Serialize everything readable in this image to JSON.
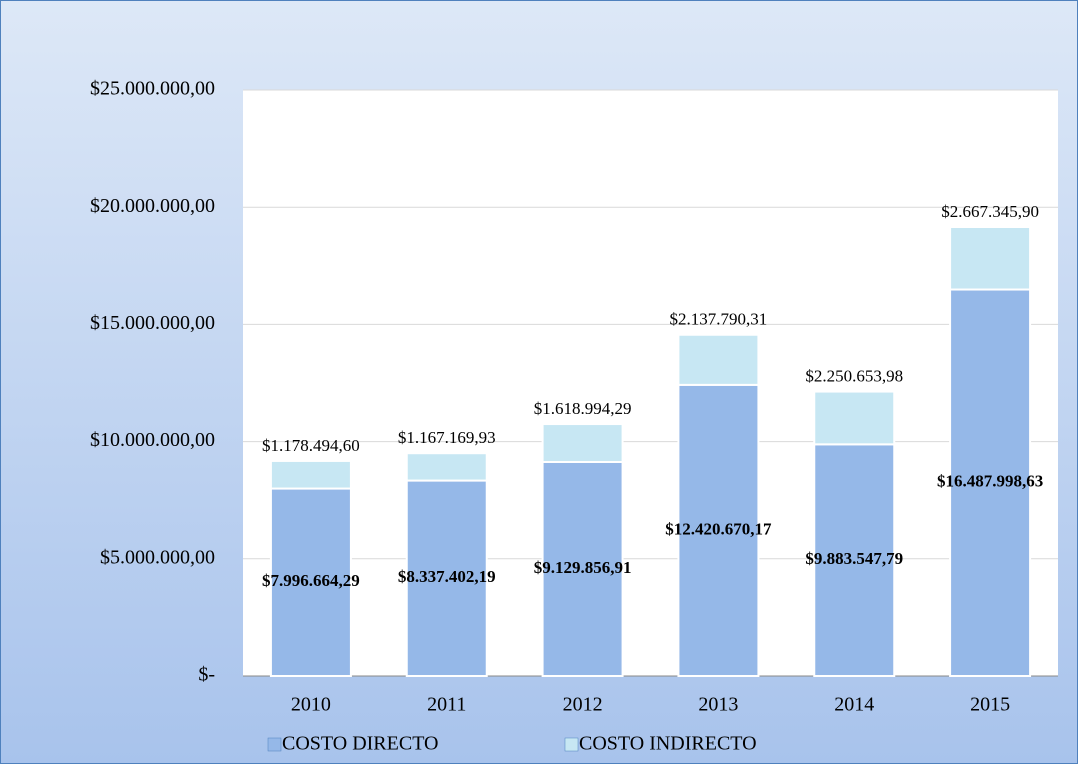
{
  "chart_data": {
    "type": "stacked-bar",
    "categories": [
      "2010",
      "2011",
      "2012",
      "2013",
      "2014",
      "2015"
    ],
    "series": [
      {
        "name": "COSTO DIRECTO",
        "color": "#95b8e8",
        "values": [
          7996664.29,
          8337402.19,
          9129856.91,
          12420670.17,
          9883547.79,
          16487998.63
        ],
        "value_labels": [
          "$7.996.664,29",
          "$8.337.402,19",
          "$9.129.856,91",
          "$12.420.670,17",
          "$9.883.547,79",
          "$16.487.998,63"
        ]
      },
      {
        "name": "COSTO INDIRECTO",
        "color": "#c7e7f3",
        "values": [
          1178494.6,
          1167169.93,
          1618994.29,
          2137790.31,
          2250653.98,
          2667345.9
        ],
        "value_labels": [
          "$1.178.494,60",
          "$1.167.169,93",
          "$1.618.994,29",
          "$2.137.790,31",
          "$2.250.653,98",
          "$2.667.345,90"
        ]
      }
    ],
    "ylim": [
      0,
      25000000
    ],
    "yticks": [
      {
        "value": 0,
        "label": "$-"
      },
      {
        "value": 5000000,
        "label": "$5.000.000,00"
      },
      {
        "value": 10000000,
        "label": "$10.000.000,00"
      },
      {
        "value": 15000000,
        "label": "$15.000.000,00"
      },
      {
        "value": 20000000,
        "label": "$20.000.000,00"
      },
      {
        "value": 25000000,
        "label": "$25.000.000,00"
      }
    ],
    "grid": true,
    "legend": "bottom"
  }
}
